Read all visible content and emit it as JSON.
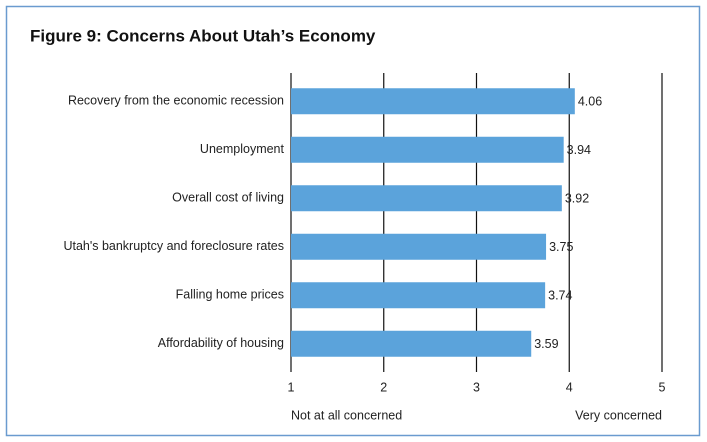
{
  "chart_data": {
    "type": "bar",
    "orientation": "horizontal",
    "title": "Figure 9: Concerns About Utah’s Economy",
    "categories": [
      "Recovery from the economic recession",
      "Unemployment",
      "Overall cost of living",
      "Utah's bankruptcy and foreclosure rates",
      "Falling home prices",
      "Affordability of housing"
    ],
    "values": [
      4.06,
      3.94,
      3.92,
      3.75,
      3.74,
      3.59
    ],
    "color": "#5ba3db",
    "xlim": [
      1,
      5
    ],
    "xticks": [
      1,
      2,
      3,
      4,
      5
    ],
    "grid": true,
    "annotations": [
      "Not at all concerned",
      "Very concerned"
    ]
  }
}
